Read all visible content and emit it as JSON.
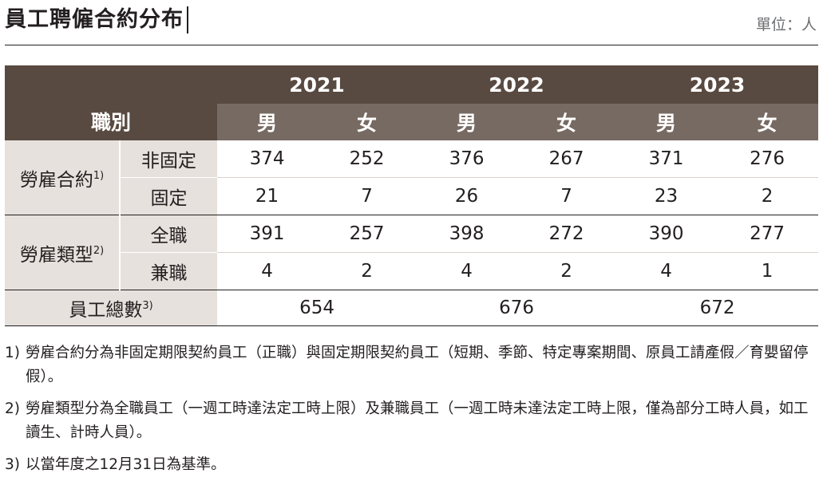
{
  "title": "員工聘僱合約分布",
  "unit": "單位：人",
  "table": {
    "corner_label": "職別",
    "years": [
      "2021",
      "2022",
      "2023"
    ],
    "genders": [
      "男",
      "女",
      "男",
      "女",
      "男",
      "女"
    ],
    "groups": [
      {
        "label": "勞雇合約",
        "note_ref": "1)",
        "rows": [
          {
            "label": "非固定",
            "values": [
              "374",
              "252",
              "376",
              "267",
              "371",
              "276"
            ]
          },
          {
            "label": "固定",
            "values": [
              "21",
              "7",
              "26",
              "7",
              "23",
              "2"
            ]
          }
        ]
      },
      {
        "label": "勞雇類型",
        "note_ref": "2)",
        "rows": [
          {
            "label": "全職",
            "values": [
              "391",
              "257",
              "398",
              "272",
              "390",
              "277"
            ]
          },
          {
            "label": "兼職",
            "values": [
              "4",
              "2",
              "4",
              "2",
              "4",
              "1"
            ]
          }
        ]
      }
    ],
    "total": {
      "label": "員工總數",
      "note_ref": "3)",
      "values": [
        "654",
        "676",
        "672"
      ]
    }
  },
  "notes": [
    {
      "num": "1)",
      "text": "勞雇合約分為非固定期限契約員工（正職）與固定期限契約員工（短期、季節、特定專案期間、原員工請產假／育嬰留停假）。"
    },
    {
      "num": "2)",
      "text": "勞雇類型分為全職員工（一週工時達法定工時上限）及兼職員工（一週工時未達法定工時上限，僅為部分工時人員，如工讀生、計時人員）。"
    },
    {
      "num": "3)",
      "text": "以當年度之12月31日為基準。"
    }
  ]
}
